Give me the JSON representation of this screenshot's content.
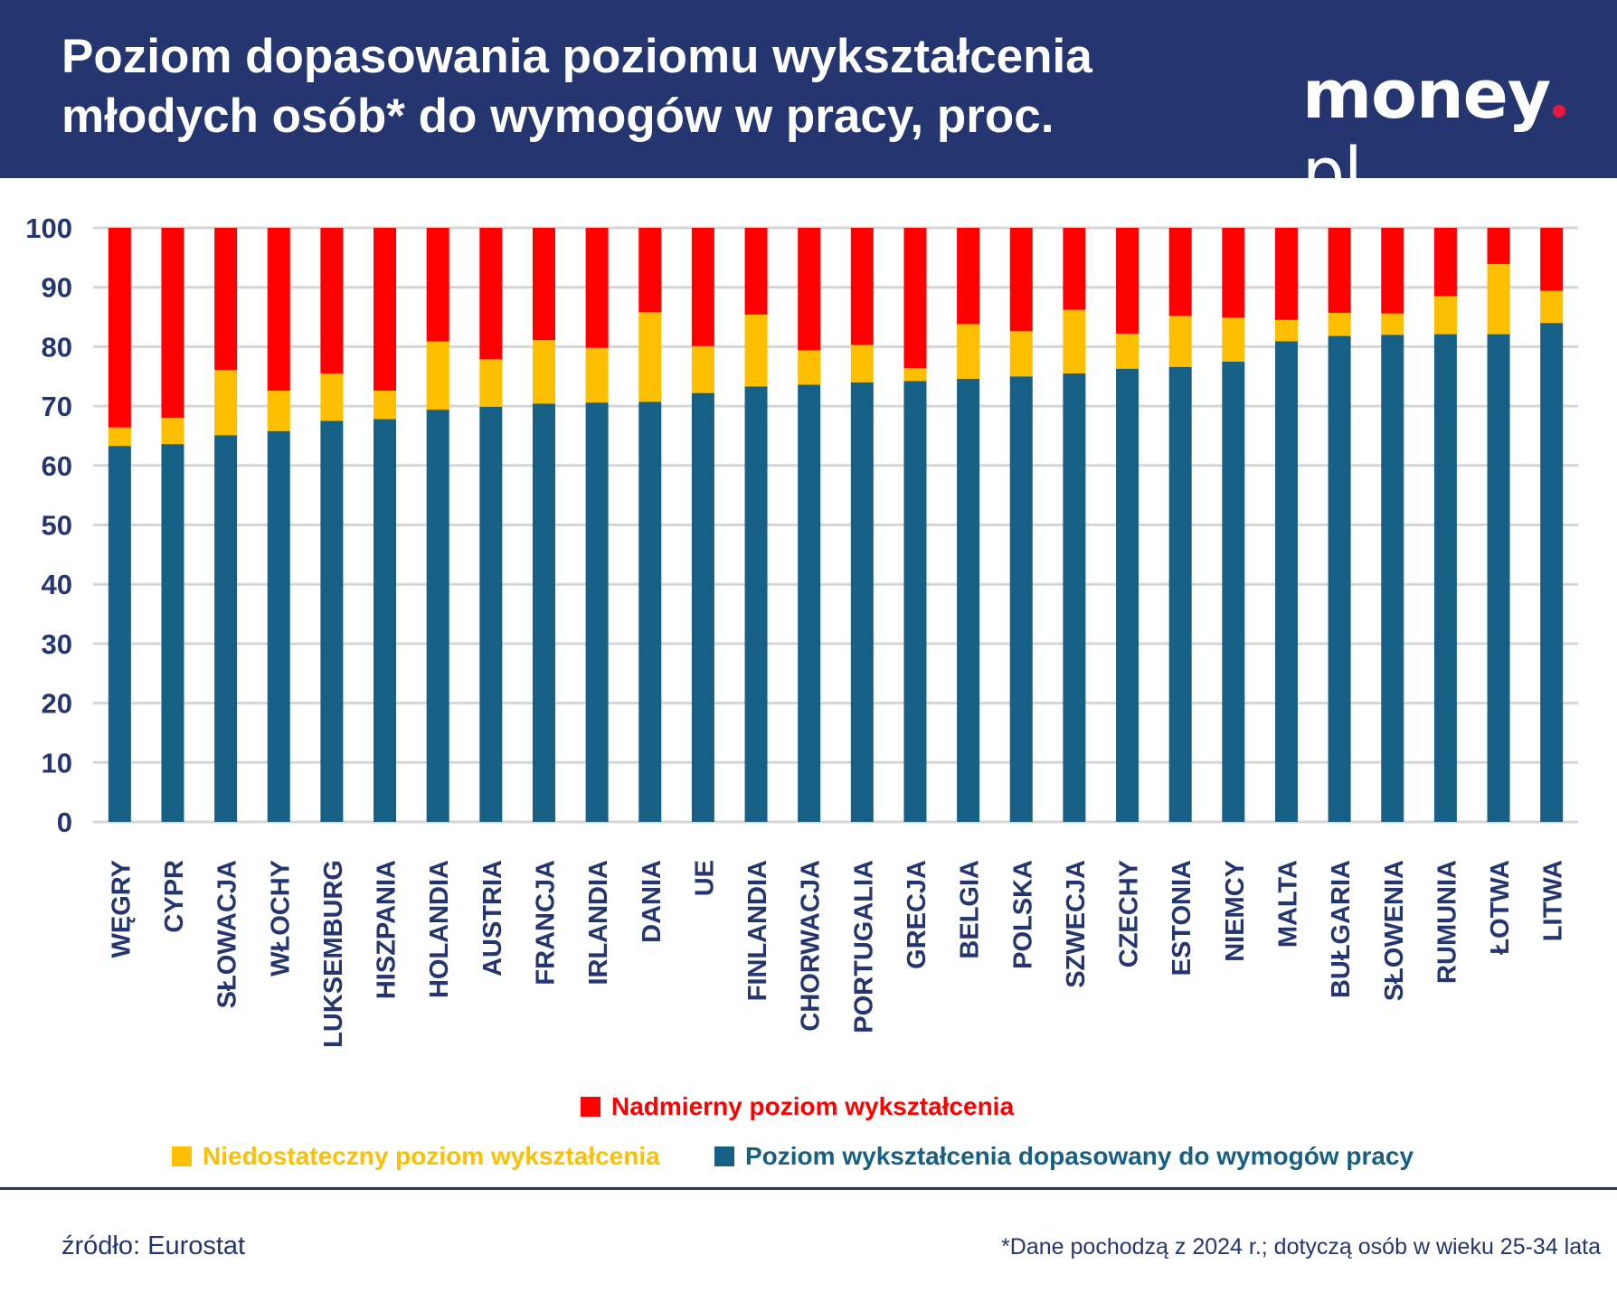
{
  "header": {
    "title_line1": "Poziom dopasowania poziomu wykształcenia",
    "title_line2": "młodych osób* do wymogów w pracy, proc.",
    "logo": "money.pl",
    "background_color": "#253570"
  },
  "chart_data": {
    "type": "bar",
    "stacked": true,
    "ylim": [
      0,
      100
    ],
    "yticks": [
      0,
      10,
      20,
      30,
      40,
      50,
      60,
      70,
      80,
      90,
      100
    ],
    "grid": true,
    "legend_placement": "bottom",
    "categories": [
      "WĘGRY",
      "CYPR",
      "SŁOWACJA",
      "WŁOCHY",
      "LUKSEMBURG",
      "HISZPANIA",
      "HOLANDIA",
      "AUSTRIA",
      "FRANCJA",
      "IRLANDIA",
      "DANIA",
      "UE",
      "FINLANDIA",
      "CHORWACJA",
      "PORTUGALIA",
      "GRECJA",
      "BELGIA",
      "POLSKA",
      "SZWECJA",
      "CZECHY",
      "ESTONIA",
      "NIEMCY",
      "MALTA",
      "BUŁGARIA",
      "SŁOWENIA",
      "RUMUNIA",
      "ŁOTWA",
      "LITWA"
    ],
    "series": [
      {
        "name": "Poziom wykształcenia dopasowany do wymogów pracy",
        "color": "#176085",
        "values": [
          63.3,
          63.6,
          65.1,
          65.8,
          67.5,
          67.8,
          69.4,
          69.9,
          70.4,
          70.6,
          70.7,
          72.2,
          73.3,
          73.6,
          74.0,
          74.2,
          74.6,
          75.0,
          75.5,
          76.3,
          76.6,
          77.5,
          80.9,
          81.8,
          82.0,
          82.1,
          82.1,
          84.0
        ]
      },
      {
        "name": "Niedostateczny poziom wykształcenia",
        "color": "#fdbf00",
        "values": [
          3.1,
          4.4,
          11.0,
          6.8,
          8.0,
          4.8,
          11.5,
          8.0,
          10.7,
          9.2,
          15.1,
          7.9,
          12.1,
          5.8,
          6.3,
          2.2,
          9.2,
          7.6,
          10.7,
          5.9,
          8.6,
          7.4,
          3.6,
          3.9,
          3.6,
          6.4,
          11.8,
          5.4
        ]
      },
      {
        "name": "Nadmierny poziom wykształcenia",
        "color": "#ff0000",
        "values": [
          33.6,
          32.0,
          23.9,
          27.4,
          24.5,
          27.4,
          19.1,
          22.1,
          18.9,
          20.2,
          14.2,
          19.9,
          14.6,
          20.6,
          19.7,
          23.6,
          16.2,
          17.4,
          13.8,
          17.8,
          14.8,
          15.1,
          15.5,
          14.3,
          14.4,
          11.5,
          6.1,
          10.6
        ]
      }
    ]
  },
  "legend": {
    "over": "Nadmierny poziom wykształcenia",
    "under": "Niedostateczny poziom wykształcenia",
    "matched": "Poziom wykształcenia dopasowany do wymogów pracy"
  },
  "footer": {
    "source": "źródło: Eurostat",
    "note": "*Dane pochodzą z 2024 r.; dotyczą osób w wieku 25-34 lata"
  }
}
